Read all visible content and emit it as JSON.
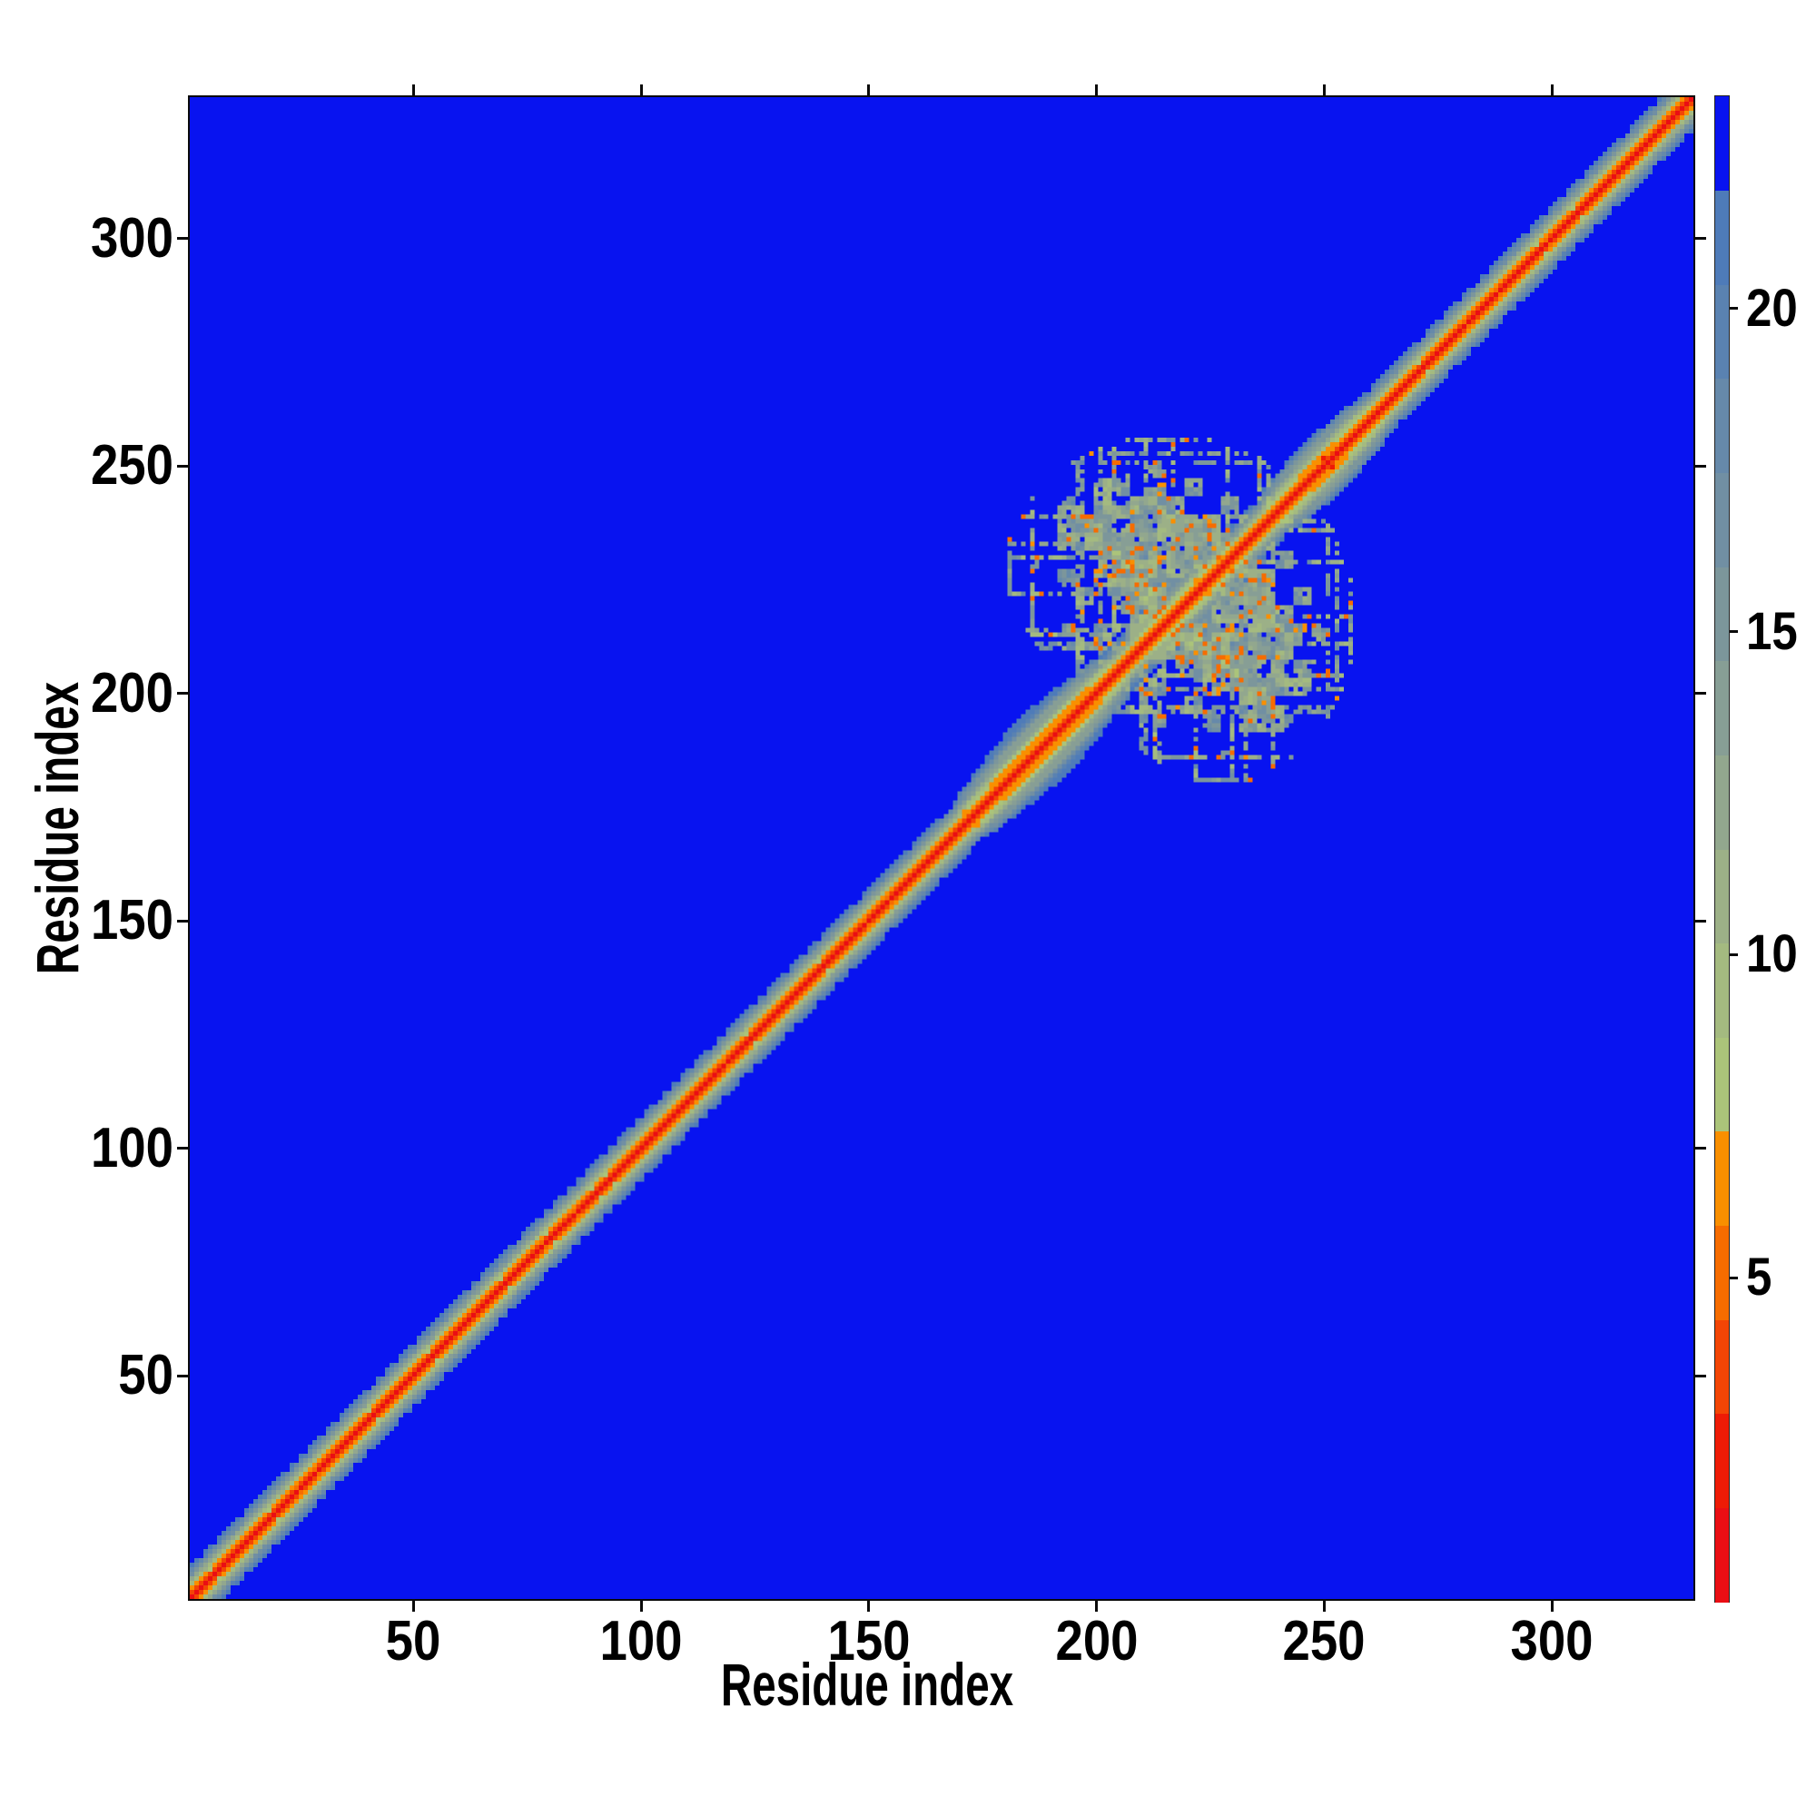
{
  "figure": {
    "background": "#ffffff",
    "plot_background": "#0813f0"
  },
  "chart_data": {
    "type": "heatmap",
    "title": "",
    "xlabel": "Residue index",
    "ylabel": "Residue index",
    "x_range": [
      1,
      331
    ],
    "y_range": [
      1,
      331
    ],
    "xticks": [
      50,
      100,
      150,
      200,
      250,
      300
    ],
    "yticks": [
      50,
      100,
      150,
      200,
      250,
      300
    ],
    "grid": false,
    "description": "Symmetric residue-residue distance matrix of a 331-residue protein chain. Red diagonal (short distances) flanked by orange and sage-green bands on a bright blue background (distances beyond ~23). A compact helical domain produces a widened lens-shaped band around residues 170-265 and mirrored blocky off-diagonal contact patches spanning roughly residues 190-250 with scattered orange (close contact) specks and blue holes; an isolated close-contact dot sits near (250,252).",
    "colorbar": {
      "vmin": 0,
      "vmax": 23.3,
      "ticks": [
        5,
        10,
        15,
        20
      ],
      "n_bands": 16,
      "colors_bottom_to_top": [
        "#ea0e14",
        "#ee1b06",
        "#f34505",
        "#f66c00",
        "#f98f00",
        "#abc47a",
        "#a4ba80",
        "#9cb087",
        "#92a78e",
        "#879e95",
        "#7c969b",
        "#718fa3",
        "#6689aa",
        "#5a82b1",
        "#4e7bb9",
        "#0813f0"
      ]
    },
    "model": {
      "n": 331,
      "chain": {
        "offset": 0.8,
        "slope": 2.95,
        "jitter": 1.3
      },
      "helix": {
        "offset": 1.1,
        "slope": 1.95,
        "ripple_amp": 1.1,
        "ripple_freq": 1.745
      },
      "helix_regions": [
        {
          "start": 170,
          "end": 207,
          "strength": 1.0
        },
        {
          "start": 209,
          "end": 233,
          "strength": 0.6
        },
        {
          "start": 237,
          "end": 263,
          "strength": 0.8
        }
      ],
      "contact_patch": {
        "i_center": 216,
        "j_center": 228,
        "rx": 26,
        "ry": 21,
        "d_base": 9.5,
        "d_spread": 7.5,
        "orange_prob": 0.06,
        "orange_d": 5.4,
        "hole_prob": 0.05,
        "stripe_row_thresh": 0.82,
        "stripe_col_thresh": 0.84,
        "speck_focus_i": 208,
        "speck_focus_j": 226,
        "speck_focus_sigma": 20
      },
      "extra_dots": [
        {
          "i": 171,
          "j": 174,
          "v": 6.0
        },
        {
          "i": 250,
          "j": 252,
          "v": 2.2
        }
      ]
    }
  }
}
